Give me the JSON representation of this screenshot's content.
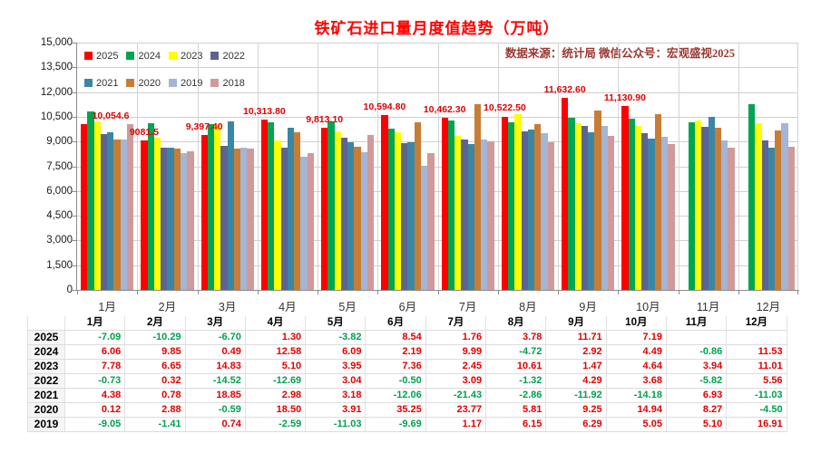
{
  "title": "铁矿石进口量月度值趋势（万吨）",
  "source_note": "数据来源：统计局  微信公众号：宏观盛视2025",
  "y_axis": {
    "tick_labels": [
      "15,000",
      "13,500",
      "12,000",
      "10,500",
      "9,000",
      "7,500",
      "6,000",
      "4,500",
      "3,000",
      "1,500",
      "0"
    ],
    "max": 15000,
    "step": 1500
  },
  "chart_data": {
    "type": "bar",
    "title": "铁矿石进口量月度值趋势（万吨）",
    "xlabel": "",
    "ylabel": "万吨",
    "ylim": [
      0,
      15000
    ],
    "y_tick_step": 1500,
    "grid": true,
    "legend_position": "top-left-two-rows",
    "categories": [
      "1月",
      "2月",
      "3月",
      "4月",
      "5月",
      "6月",
      "7月",
      "8月",
      "9月",
      "10月",
      "11月",
      "12月"
    ],
    "series": [
      {
        "name": "2025",
        "color": "#fe0000",
        "values": [
          10054.6,
          9081.5,
          9397.4,
          10313.8,
          9813.1,
          10594.8,
          10462.3,
          10522.5,
          11632.6,
          11130.9,
          null,
          null
        ],
        "point_labels": [
          "10,054.6",
          "9081.5",
          "9,397.40",
          "10,313.80",
          "9,813.10",
          "10,594.80",
          "10,462.30",
          "10,522.50",
          "11,632.60",
          "11,130.90",
          "",
          ""
        ]
      },
      {
        "name": "2024",
        "color": "#00a550",
        "values": [
          10821.9,
          10123.2,
          10072.2,
          10181.4,
          10202.9,
          9761.2,
          10281.4,
          10139.3,
          10413.2,
          10384.3,
          10186.0,
          11248.9
        ]
      },
      {
        "name": "2023",
        "color": "#ffff00",
        "values": [
          10203.6,
          9215.5,
          10023.1,
          9043.5,
          9617.2,
          9552.0,
          9347.6,
          10641.6,
          10117.8,
          9938.1,
          10274.4,
          10086.0
        ]
      },
      {
        "name": "2022",
        "color": "#5f6391",
        "values": [
          9467.2,
          8640.9,
          8728.6,
          8604.7,
          9251.8,
          8897.2,
          9124.1,
          9620.9,
          9971.2,
          9497.4,
          9884.9,
          9085.7
        ]
      },
      {
        "name": "2021",
        "color": "#3a87a5",
        "values": [
          9536.8,
          8613.3,
          10211.3,
          9855.4,
          8978.8,
          8941.9,
          8850.6,
          9749.6,
          9561.0,
          9160.3,
          10495.7,
          8607.1
        ]
      },
      {
        "name": "2020",
        "color": "#c87d35",
        "values": [
          9136.6,
          8546.6,
          8591.7,
          9570.2,
          8702.1,
          10168.2,
          11264.6,
          10036.6,
          10855.0,
          10673.9,
          9815.5,
          9674.2
        ]
      },
      {
        "name": "2019",
        "color": "#a4b5d5",
        "values": [
          9125.6,
          8307.3,
          8642.7,
          8076.1,
          8374.7,
          7518.1,
          9101.4,
          9485.5,
          9935.9,
          9286.5,
          9065.7,
          10129.0
        ]
      },
      {
        "name": "2018",
        "color": "#d09a9a",
        "values": [
          10033.6,
          8426.1,
          8579.2,
          8290.8,
          9412.9,
          8324.8,
          8996.1,
          8935.9,
          9347.9,
          8840.1,
          8625.8,
          8664.0
        ]
      }
    ]
  },
  "table": {
    "header_months": [
      "1月",
      "2月",
      "3月",
      "4月",
      "5月",
      "6月",
      "7月",
      "8月",
      "9月",
      "10月",
      "11月",
      "12月"
    ],
    "rows": [
      {
        "year": "2025",
        "values": [
          "-7.09",
          "-10.29",
          "-6.70",
          "1.30",
          "-3.82",
          "8.54",
          "1.76",
          "3.78",
          "11.71",
          "7.19",
          "",
          ""
        ]
      },
      {
        "year": "2024",
        "values": [
          "6.06",
          "9.85",
          "0.49",
          "12.58",
          "6.09",
          "2.19",
          "9.99",
          "-4.72",
          "2.92",
          "4.49",
          "-0.86",
          "11.53"
        ]
      },
      {
        "year": "2023",
        "values": [
          "7.78",
          "6.65",
          "14.83",
          "5.10",
          "3.95",
          "7.36",
          "2.45",
          "10.61",
          "1.47",
          "4.64",
          "3.94",
          "11.01"
        ]
      },
      {
        "year": "2022",
        "values": [
          "-0.73",
          "0.32",
          "-14.52",
          "-12.69",
          "3.04",
          "-0.50",
          "3.09",
          "-1.32",
          "4.29",
          "3.68",
          "-5.82",
          "5.56"
        ]
      },
      {
        "year": "2021",
        "values": [
          "4.38",
          "0.78",
          "18.85",
          "2.98",
          "3.18",
          "-12.06",
          "-21.43",
          "-2.86",
          "-11.92",
          "-14.18",
          "6.93",
          "-11.03"
        ]
      },
      {
        "year": "2020",
        "values": [
          "0.12",
          "2.88",
          "-0.59",
          "18.50",
          "3.91",
          "35.25",
          "23.77",
          "5.81",
          "9.25",
          "14.94",
          "8.27",
          "-4.50"
        ]
      },
      {
        "year": "2019",
        "values": [
          "-9.05",
          "-1.41",
          "0.74",
          "-2.59",
          "-11.03",
          "-9.69",
          "1.17",
          "6.15",
          "6.29",
          "5.05",
          "5.10",
          "16.91"
        ]
      }
    ]
  },
  "colors": {
    "title": "#fe0000",
    "source_note": "#9b3832",
    "positive_value": "#e10000",
    "negative_value": "#00a050",
    "gridline": "#cfcfcf",
    "axis": "#8c8c8c"
  }
}
